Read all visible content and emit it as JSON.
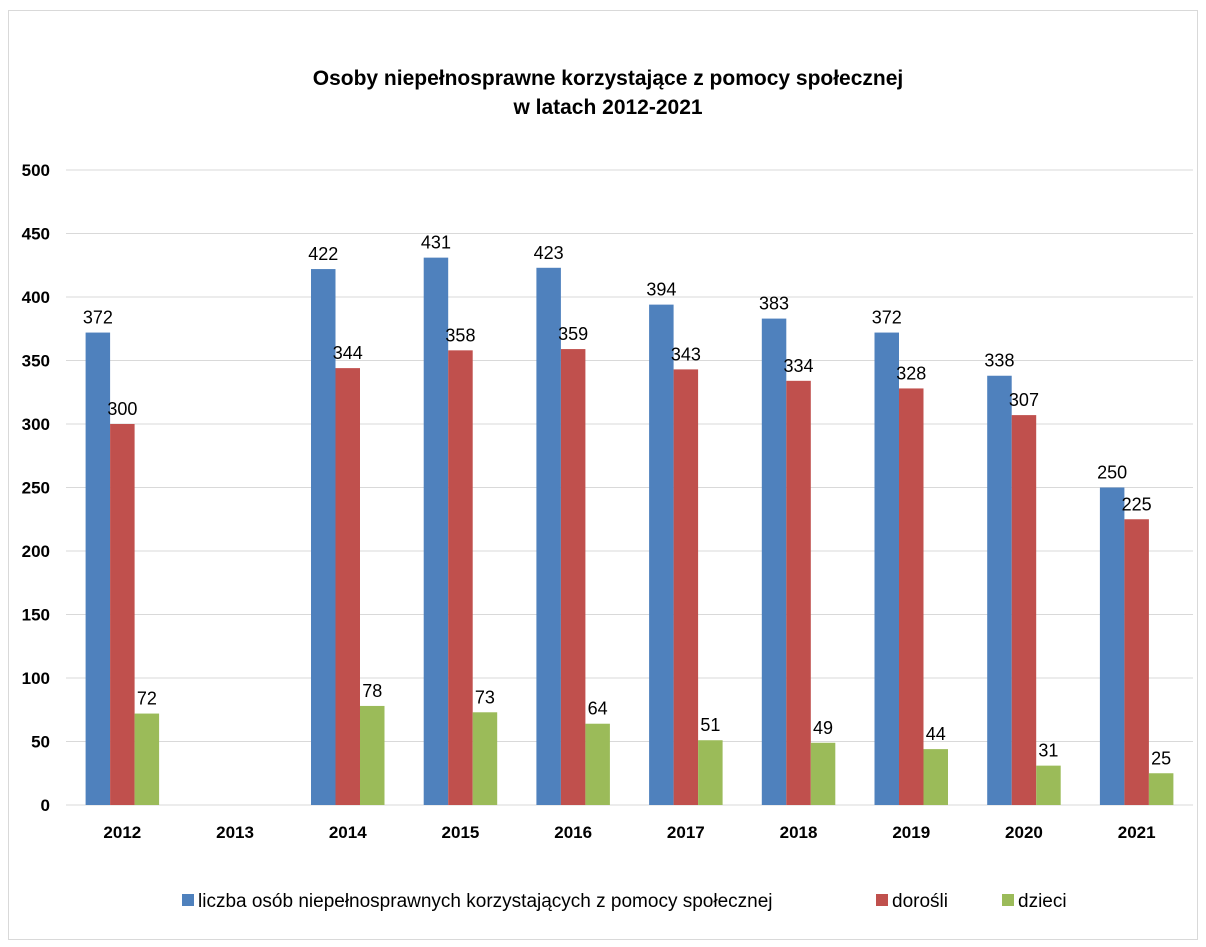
{
  "chart_data": {
    "type": "bar",
    "title": "Osoby niepełnosprawne korzystające z pomocy społecznej",
    "subtitle": "w latach 2012-2021",
    "categories": [
      "2012",
      "2013",
      "2014",
      "2015",
      "2016",
      "2017",
      "2018",
      "2019",
      "2020",
      "2021"
    ],
    "series": [
      {
        "name": "liczba osób niepełnosprawnych korzystających z pomocy społecznej",
        "color": "#4f81bd",
        "values": [
          372,
          null,
          422,
          431,
          423,
          394,
          383,
          372,
          338,
          250
        ]
      },
      {
        "name": "dorośli",
        "color": "#c0504d",
        "values": [
          300,
          null,
          344,
          358,
          359,
          343,
          334,
          328,
          307,
          225
        ]
      },
      {
        "name": "dzieci",
        "color": "#9bbb59",
        "values": [
          72,
          null,
          78,
          73,
          64,
          51,
          49,
          44,
          31,
          25
        ]
      }
    ],
    "ylim": [
      0,
      500
    ],
    "yticks": [
      0,
      50,
      100,
      150,
      200,
      250,
      300,
      350,
      400,
      450,
      500
    ],
    "grid": true,
    "legend_position": "bottom",
    "xlabel": "",
    "ylabel": ""
  }
}
